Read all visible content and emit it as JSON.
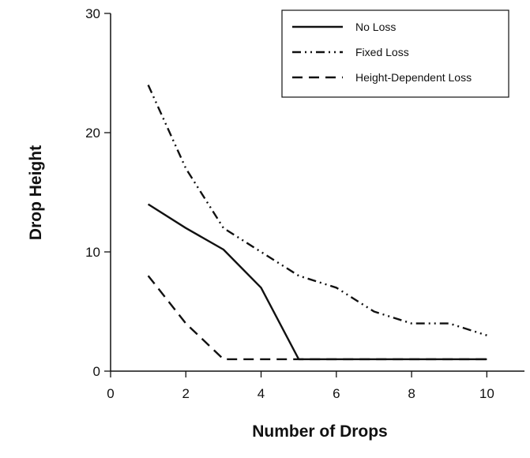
{
  "chart_data": {
    "type": "line",
    "xlabel": "Number of Drops",
    "ylabel": "Drop Height",
    "xlim": [
      0,
      11
    ],
    "ylim": [
      0,
      30
    ],
    "x_ticks": [
      0,
      2,
      4,
      6,
      8,
      10
    ],
    "y_ticks": [
      0,
      10,
      20,
      30
    ],
    "grid": false,
    "legend_position": "top-right",
    "series": [
      {
        "name": "No Loss",
        "style": "solid",
        "color": "#111111",
        "x": [
          1,
          2,
          3,
          4,
          5,
          6,
          7,
          8,
          9,
          10
        ],
        "values": [
          14,
          12,
          10.2,
          7,
          1,
          1,
          1,
          1,
          1,
          1
        ]
      },
      {
        "name": "Fixed Loss",
        "style": "dash-dot-dot",
        "color": "#111111",
        "x": [
          1,
          2,
          3,
          4,
          5,
          6,
          7,
          8,
          9,
          10
        ],
        "values": [
          24,
          17,
          12,
          10,
          8,
          7,
          5,
          4,
          4,
          3
        ]
      },
      {
        "name": "Height-Dependent Loss",
        "style": "dashed",
        "color": "#111111",
        "x": [
          1,
          2,
          3,
          4,
          5,
          6,
          7,
          8,
          9,
          10
        ],
        "values": [
          8,
          4,
          1,
          1,
          1,
          1,
          1,
          1,
          1,
          1
        ]
      }
    ]
  }
}
